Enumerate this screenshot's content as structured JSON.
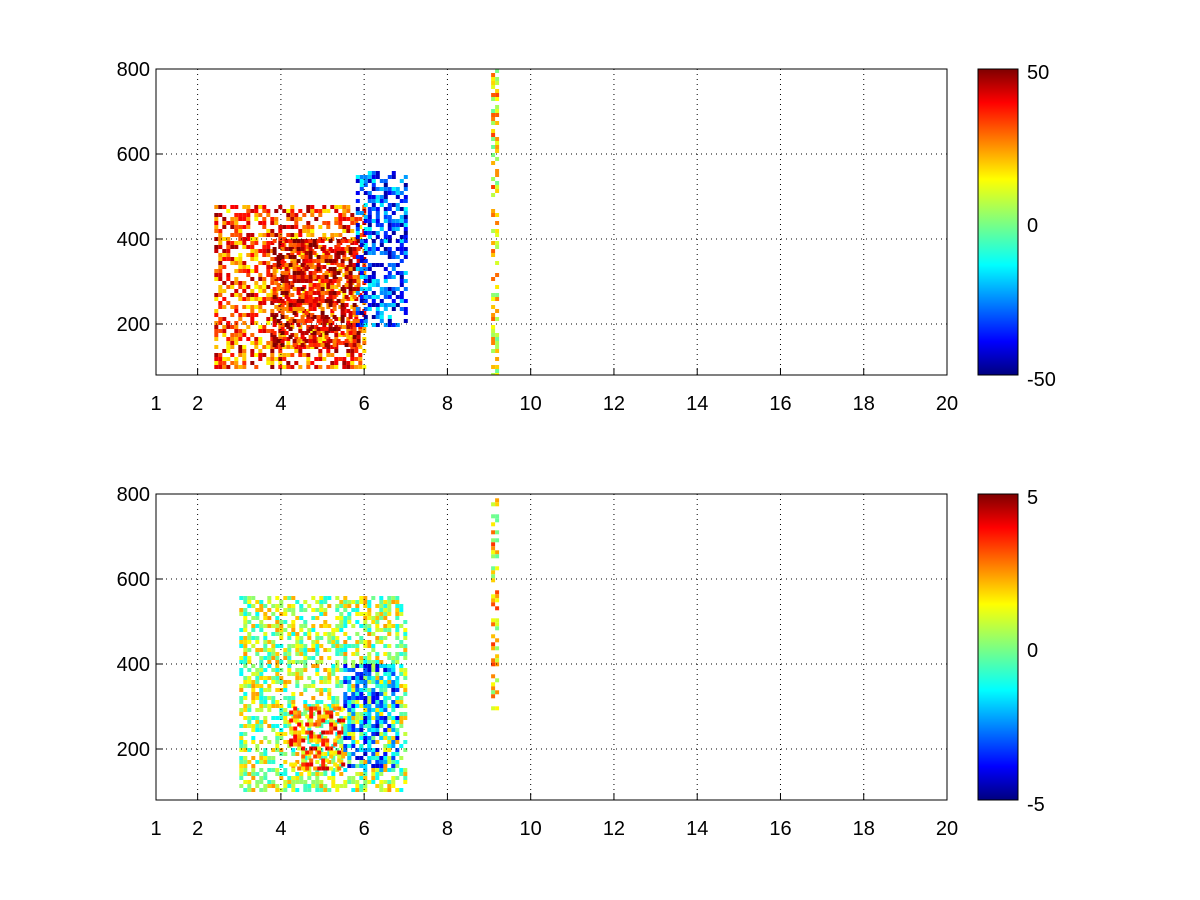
{
  "chart_data": [
    {
      "type": "heatmap",
      "x_ticks": [
        "1",
        "2",
        "4",
        "6",
        "8",
        "10",
        "12",
        "14",
        "16",
        "18",
        "20"
      ],
      "x_tick_values": [
        1,
        2,
        4,
        6,
        8,
        10,
        12,
        14,
        16,
        18,
        20
      ],
      "y_ticks": [
        "200",
        "400",
        "600",
        "800"
      ],
      "y_tick_values": [
        200,
        400,
        600,
        800
      ],
      "xlim": [
        1,
        20
      ],
      "ylim": [
        80,
        800
      ],
      "colorbar": {
        "ticks": [
          "50",
          "0",
          "-50"
        ],
        "tick_values": [
          50,
          0,
          -50
        ],
        "clim": [
          -50,
          50
        ],
        "colormap": "jet"
      },
      "grid": true,
      "grid_style": "dotted",
      "description": "",
      "regions": [
        {
          "x": [
            2.4,
            6.0
          ],
          "y": [
            100,
            480
          ],
          "value": 30
        },
        {
          "x": [
            3.8,
            5.9
          ],
          "y": [
            150,
            400
          ],
          "value": 40
        },
        {
          "x": [
            5.8,
            7.0
          ],
          "y": [
            200,
            560
          ],
          "value": -30
        },
        {
          "x": [
            9.05,
            9.15
          ],
          "y": [
            80,
            800
          ],
          "value": 15
        }
      ]
    },
    {
      "type": "heatmap",
      "x_ticks": [
        "1",
        "2",
        "4",
        "6",
        "8",
        "10",
        "12",
        "14",
        "16",
        "18",
        "20"
      ],
      "x_tick_values": [
        1,
        2,
        4,
        6,
        8,
        10,
        12,
        14,
        16,
        18,
        20
      ],
      "y_ticks": [
        "200",
        "400",
        "600",
        "800"
      ],
      "y_tick_values": [
        200,
        400,
        600,
        800
      ],
      "xlim": [
        1,
        20
      ],
      "ylim": [
        80,
        800
      ],
      "colorbar": {
        "ticks": [
          "5",
          "0",
          "-5"
        ],
        "tick_values": [
          5,
          0,
          -5
        ],
        "clim": [
          -5,
          5
        ],
        "colormap": "jet"
      },
      "grid": true,
      "grid_style": "dotted",
      "regions": [
        {
          "x": [
            3.0,
            7.0
          ],
          "y": [
            100,
            560
          ],
          "value": 0.5
        },
        {
          "x": [
            4.2,
            5.5
          ],
          "y": [
            150,
            300
          ],
          "value": 2.5
        },
        {
          "x": [
            5.5,
            6.8
          ],
          "y": [
            150,
            400
          ],
          "value": -2.5
        },
        {
          "x": [
            9.05,
            9.15
          ],
          "y": [
            290,
            790
          ],
          "value": 1.5
        }
      ]
    }
  ]
}
